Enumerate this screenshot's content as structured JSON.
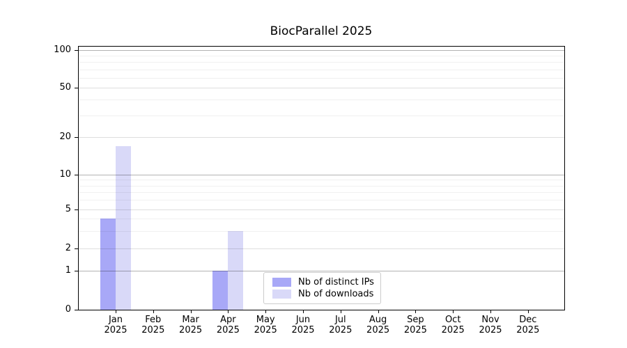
{
  "chart_data": {
    "type": "bar",
    "title": "BiocParallel 2025",
    "categories": [
      "Jan",
      "Feb",
      "Mar",
      "Apr",
      "May",
      "Jun",
      "Jul",
      "Aug",
      "Sep",
      "Oct",
      "Nov",
      "Dec"
    ],
    "category_year": "2025",
    "series": [
      {
        "name": "Nb of distinct IPs",
        "color": "#a8a8f7",
        "values": [
          4,
          0,
          0,
          1,
          0,
          0,
          0,
          0,
          0,
          0,
          0,
          0
        ]
      },
      {
        "name": "Nb of downloads",
        "color": "#d9d9f8",
        "values": [
          17,
          0,
          0,
          3,
          0,
          0,
          0,
          0,
          0,
          0,
          0,
          0
        ]
      }
    ],
    "y_axis": {
      "scale": "log-like",
      "ylim": [
        0,
        100
      ],
      "major_ticks": [
        0,
        1,
        2,
        5,
        10,
        20,
        50,
        100
      ],
      "decade_ticks": [
        1,
        10,
        100
      ],
      "minor_gridlines": [
        3,
        4,
        6,
        7,
        8,
        9,
        30,
        40,
        60,
        70,
        80,
        90
      ]
    },
    "legend": {
      "position": "lower center",
      "entries": [
        "Nb of distinct IPs",
        "Nb of downloads"
      ]
    },
    "grid": true
  },
  "colors": {
    "series_ips": "#a8a8f7",
    "series_downloads": "#d9d9f8",
    "grid_decade": "rgba(0,0,0,0.30)",
    "grid_major": "rgba(0,0,0,0.13)",
    "grid_minor": "rgba(0,0,0,0.06)",
    "spine": "#000000",
    "text": "#000000",
    "legend_border": "#cccccc",
    "background": "#ffffff"
  }
}
